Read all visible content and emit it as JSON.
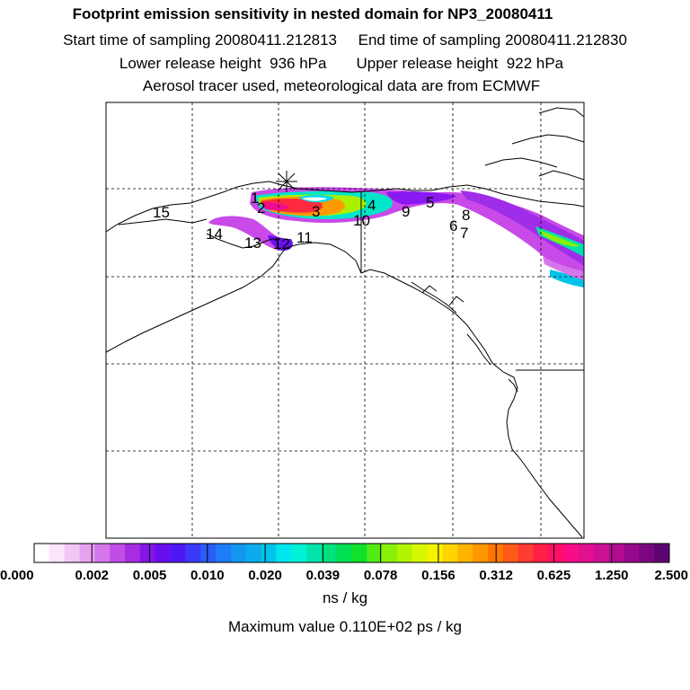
{
  "header": {
    "title": "Footprint emission sensitivity in nested domain for NP3_20080411",
    "line2": "Start time of sampling 20080411.212813     End time of sampling 20080411.212830",
    "line3": "Lower release height  936 hPa       Upper release height  922 hPa",
    "line4": "Aerosol tracer used, meteorological data are from ECMWF"
  },
  "markers": [
    {
      "label": "1"
    },
    {
      "label": "2"
    },
    {
      "label": "3"
    },
    {
      "label": "4"
    },
    {
      "label": "5"
    },
    {
      "label": "6"
    },
    {
      "label": "7"
    },
    {
      "label": "8"
    },
    {
      "label": "9"
    },
    {
      "label": "10"
    },
    {
      "label": "11"
    },
    {
      "label": "12"
    },
    {
      "label": "13"
    },
    {
      "label": "14"
    },
    {
      "label": "15"
    }
  ],
  "colorbar": {
    "ticks": [
      "0.000",
      "0.002",
      "0.005",
      "0.010",
      "0.020",
      "0.039",
      "0.078",
      "0.156",
      "0.312",
      "0.625",
      "1.250",
      "2.500"
    ],
    "colors": [
      "#ffffff",
      "#fce6fc",
      "#f2c6f4",
      "#e6a2ee",
      "#d577ea",
      "#c24de6",
      "#a62ee0",
      "#8416e8",
      "#6a0ef0",
      "#4e18f4",
      "#3a3af8",
      "#2a5cf8",
      "#1e7cf6",
      "#1496f0",
      "#0aacec",
      "#00c4ea",
      "#00e6ee",
      "#00f2d8",
      "#00e4ac",
      "#00e07c",
      "#00de52",
      "#10e22c",
      "#54ea14",
      "#8af00a",
      "#b2f400",
      "#d8f600",
      "#f6f200",
      "#ffd400",
      "#ffb400",
      "#ff9600",
      "#ff7600",
      "#ff5a1a",
      "#ff3c30",
      "#ff2048",
      "#ff0e68",
      "#f80c88",
      "#e21090",
      "#cc1094",
      "#b20c92",
      "#96088c",
      "#7a0680",
      "#5e0470"
    ],
    "unit": "ns / kg",
    "max_value": "Maximum value  0.110E+02 ps / kg"
  }
}
